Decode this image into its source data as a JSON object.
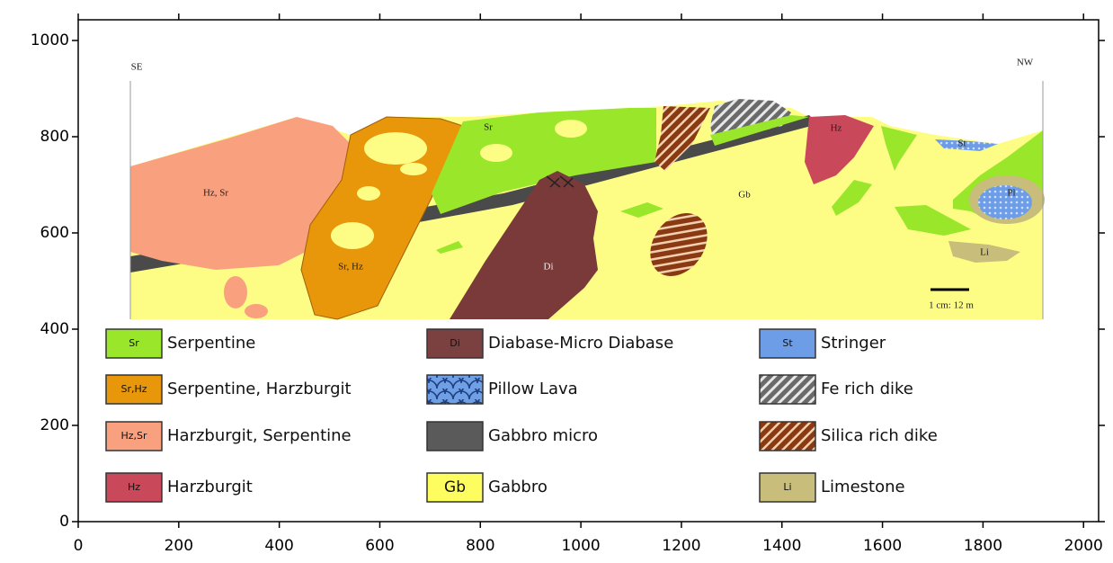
{
  "axes": {
    "xlim": [
      0,
      2030
    ],
    "ylim": [
      0,
      1043
    ],
    "xticks": [
      0,
      200,
      400,
      600,
      800,
      1000,
      1200,
      1400,
      1600,
      1800,
      2000
    ],
    "yticks": [
      0,
      200,
      400,
      600,
      800,
      1000
    ]
  },
  "section": {
    "left_end": "SE",
    "right_end": "NW",
    "scale": "1 cm: 12 m",
    "labels": [
      "Hz, Sr",
      "Sr, Hz",
      "Sr",
      "Di",
      "Gb",
      "Hz",
      "St",
      "Pl",
      "Li"
    ]
  },
  "legend": [
    {
      "code": "Sr",
      "label": "Serpentine"
    },
    {
      "code": "Sr,Hz",
      "label": "Serpentine, Harzburgit"
    },
    {
      "code": "Hz,Sr",
      "label": "Harzburgit, Serpentine"
    },
    {
      "code": "Hz",
      "label": "Harzburgit"
    },
    {
      "code": "Di",
      "label": "Diabase-Micro Diabase"
    },
    {
      "label": "Pillow Lava"
    },
    {
      "label": "Gabbro micro"
    },
    {
      "code": "Gb",
      "label": "Gabbro"
    },
    {
      "code": "St",
      "label": "Stringer"
    },
    {
      "label": "Fe rich dike"
    },
    {
      "label": "Silica rich dike"
    },
    {
      "code": "Li",
      "label": "Limestone"
    }
  ]
}
